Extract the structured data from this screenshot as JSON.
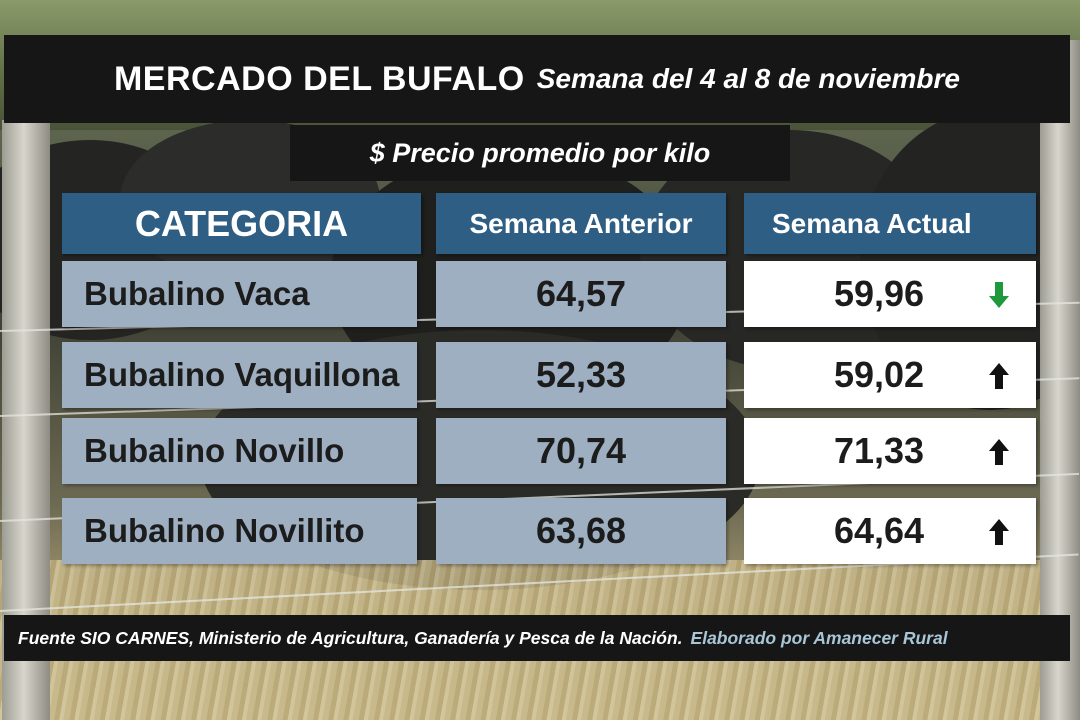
{
  "header": {
    "title": "MERCADO DEL BUFALO",
    "subtitle": "Semana del 4 al 8 de noviembre"
  },
  "caption": "$ Precio promedio por kilo",
  "table": {
    "columns": [
      "CATEGORIA",
      "Semana Anterior",
      "Semana Actual"
    ],
    "rows": [
      {
        "category": "Bubalino Vaca",
        "previous": "64,57",
        "current": "59,96",
        "trend": "down",
        "trend_color": "#1e9a3c"
      },
      {
        "category": "Bubalino Vaquillona",
        "previous": "52,33",
        "current": "59,02",
        "trend": "up",
        "trend_color": "#111111"
      },
      {
        "category": "Bubalino Novillo",
        "previous": "70,74",
        "current": "71,33",
        "trend": "up",
        "trend_color": "#111111"
      },
      {
        "category": "Bubalino Novillito",
        "previous": "63,68",
        "current": "64,64",
        "trend": "up",
        "trend_color": "#111111"
      }
    ]
  },
  "footer": {
    "source": "Fuente SIO CARNES,  Ministerio de Agricultura, Ganadería y Pesca de la Nación.",
    "credit": "Elaborado por  Amanecer Rural"
  },
  "colors": {
    "header_cell": "#2f5e84",
    "body_cell": "#9dafc0",
    "current_cell": "#ffffff",
    "bar": "#161616",
    "credit_text": "#a9c6d6"
  }
}
